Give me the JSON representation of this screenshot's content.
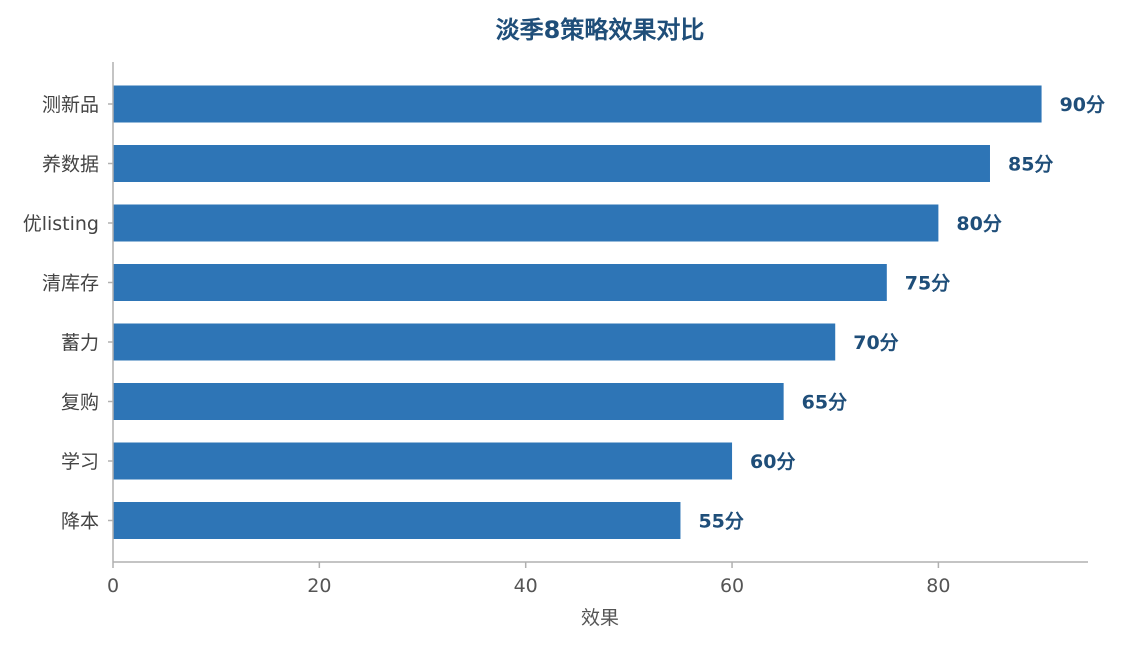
{
  "chart_data": {
    "type": "bar",
    "orientation": "horizontal",
    "title": "淡季8策略效果对比",
    "xlabel": "效果",
    "ylabel": "",
    "categories": [
      "测新品",
      "养数据",
      "优listing",
      "清库存",
      "蓄力",
      "复购",
      "学习",
      "降本"
    ],
    "values": [
      90,
      85,
      80,
      75,
      70,
      65,
      60,
      55
    ],
    "value_labels": [
      "90分",
      "85分",
      "80分",
      "75分",
      "70分",
      "65分",
      "60分",
      "55分"
    ],
    "xlim": [
      0,
      94.5
    ],
    "xticks": [
      "0",
      "20",
      "40",
      "60",
      "80"
    ],
    "grid": false,
    "legend": "none",
    "colors": {
      "bar": "#2e75b6",
      "value_label": "#1f4e79",
      "title": "#1f4e79",
      "axis": "#b0b0b0"
    }
  }
}
